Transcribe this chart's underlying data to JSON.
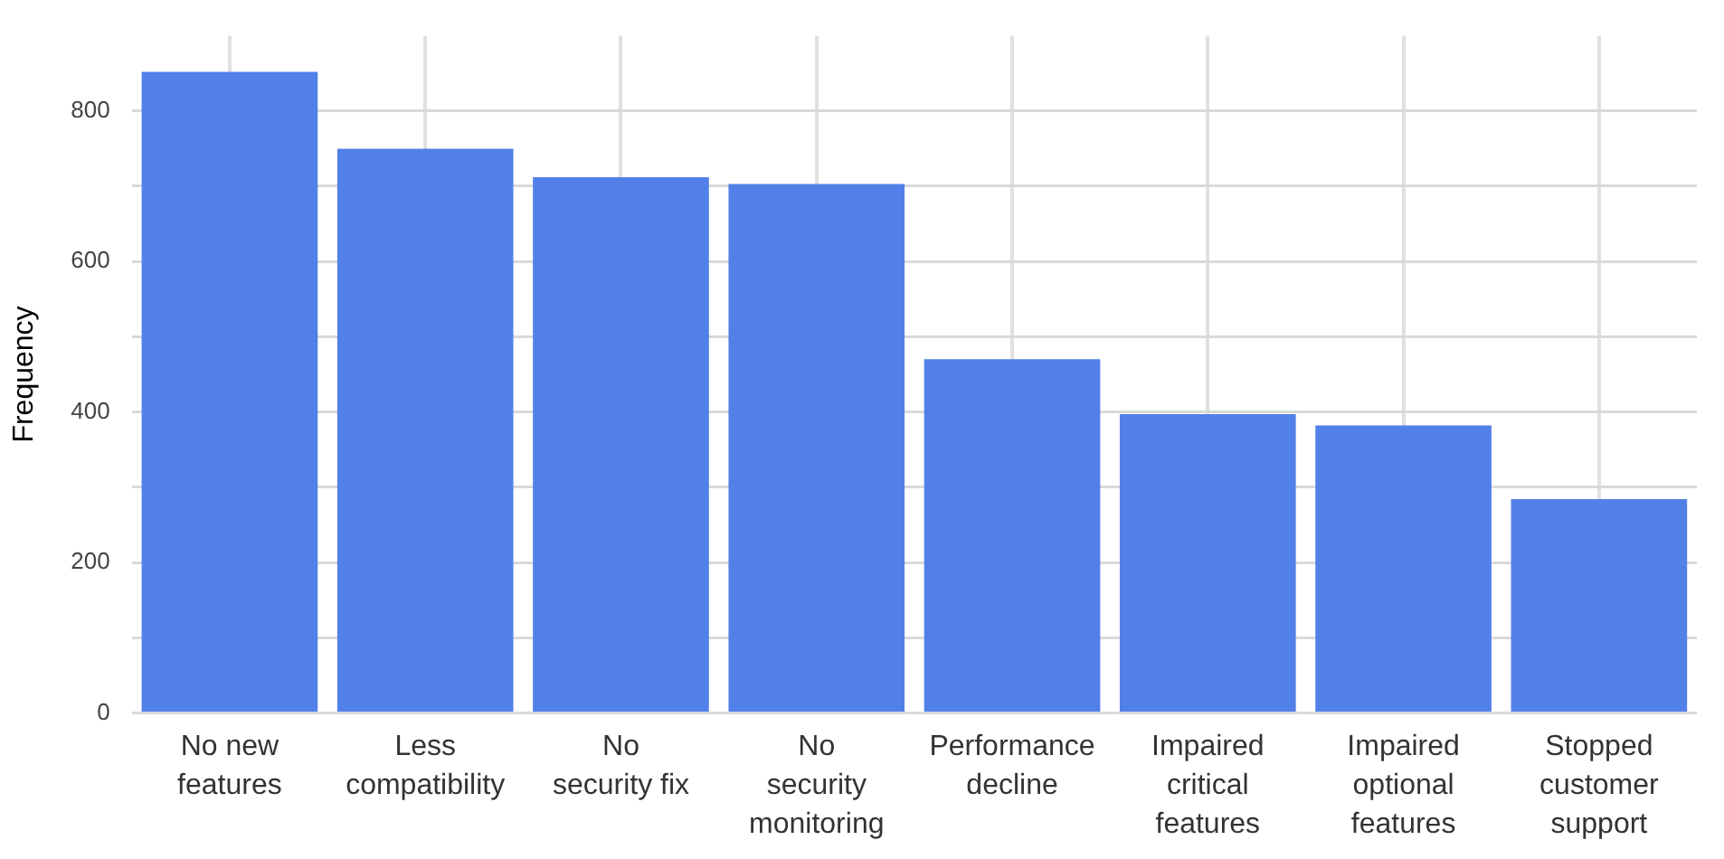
{
  "chart_data": {
    "type": "bar",
    "ylabel": "Frequency",
    "categories": [
      "No new features",
      "Less compatibility",
      "No security fix",
      "No security monitoring",
      "Performance decline",
      "Impaired critical features",
      "Impaired optional features",
      "Stopped customer support"
    ],
    "values": [
      852,
      750,
      712,
      703,
      470,
      397,
      382,
      284
    ],
    "color": "#5280e9",
    "ylim": [
      0,
      900
    ],
    "yticks": [
      0,
      {
        "value": 100,
        "label": null
      },
      200,
      {
        "value": 300,
        "label": null
      },
      400,
      {
        "value": 500,
        "label": null
      },
      600,
      {
        "value": 700,
        "label": null
      },
      800
    ],
    "grid": true,
    "legend": false
  }
}
